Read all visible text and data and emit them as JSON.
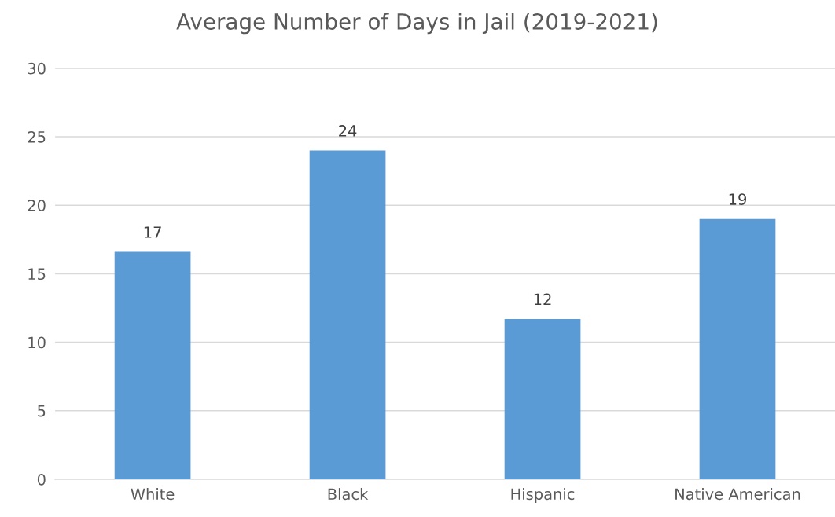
{
  "chart_data": {
    "type": "bar",
    "title": "Average Number of Days in Jail (2019-2021)",
    "categories": [
      "White",
      "Black",
      "Hispanic",
      "Native American"
    ],
    "values": [
      16.6,
      24,
      11.7,
      19
    ],
    "value_labels": [
      "17",
      "24",
      "12",
      "19"
    ],
    "color": "#5b9bd5",
    "ylim": [
      0,
      30
    ],
    "yticks": [
      0,
      5,
      10,
      15,
      20,
      25,
      30
    ],
    "grid": "y",
    "legend": false
  }
}
